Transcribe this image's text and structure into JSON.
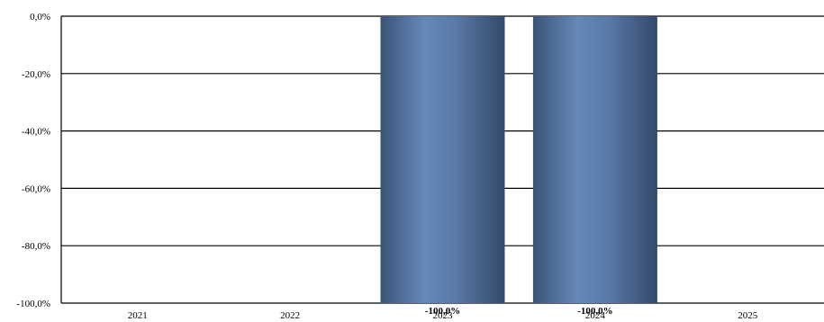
{
  "chart_data": {
    "type": "bar",
    "categories": [
      "2021",
      "2022",
      "2023",
      "2024",
      "2025"
    ],
    "values": [
      null,
      null,
      -100.0,
      -100.0,
      null
    ],
    "data_labels": [
      "",
      "",
      "-100,0%",
      "-100,0%",
      ""
    ],
    "ylim": [
      -100,
      0
    ],
    "yticks": [
      0,
      -20,
      -40,
      -60,
      -80,
      -100
    ],
    "ytick_labels": [
      "0,0%",
      "-20,0%",
      "-40,0%",
      "-60,0%",
      "-80,0%",
      "-100,0%"
    ],
    "grid": true,
    "bar_color": "#4f6f9c",
    "title": "",
    "xlabel": "",
    "ylabel": ""
  }
}
